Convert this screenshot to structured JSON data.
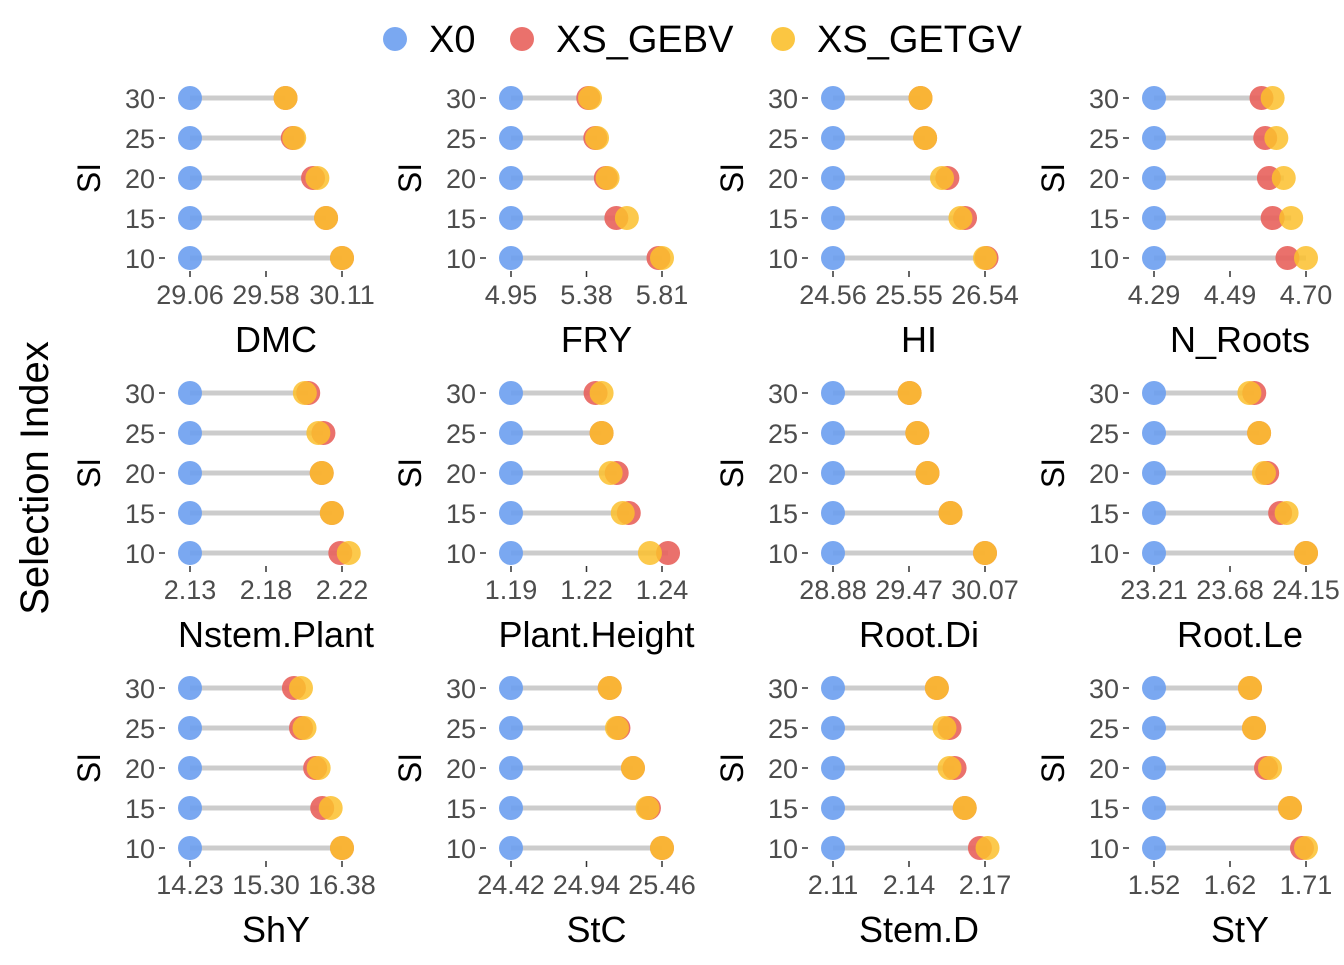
{
  "chart_data": {
    "type": "dumbbell",
    "ylabel_overall": "Selection Index",
    "legend": {
      "position": "top",
      "items": [
        {
          "name": "X0",
          "color": "#6C9EF0"
        },
        {
          "name": "XS_GEBV",
          "color": "#E8625C"
        },
        {
          "name": "XS_GETGV",
          "color": "#FBC02D"
        }
      ]
    },
    "categories": [
      "30",
      "25",
      "20",
      "15",
      "10"
    ],
    "panel_ylabel": "SI",
    "panels": [
      {
        "title": "DMC",
        "xticks": [
          "29.06",
          "29.58",
          "30.11"
        ],
        "xlim": [
          29.06,
          30.11
        ],
        "series": {
          "X0": [
            29.06,
            29.06,
            29.06,
            29.06,
            29.06
          ],
          "XS_GEBV": [
            29.72,
            29.77,
            29.91,
            30.0,
            30.11
          ],
          "XS_GETGV": [
            29.72,
            29.78,
            29.94,
            30.0,
            30.11
          ]
        }
      },
      {
        "title": "FRY",
        "xticks": [
          "4.95",
          "5.38",
          "5.81"
        ],
        "xlim": [
          4.95,
          5.81
        ],
        "series": {
          "X0": [
            4.95,
            4.95,
            4.95,
            4.95,
            4.95
          ],
          "XS_GEBV": [
            5.39,
            5.43,
            5.49,
            5.55,
            5.79
          ],
          "XS_GETGV": [
            5.4,
            5.44,
            5.5,
            5.61,
            5.81
          ]
        }
      },
      {
        "title": "HI",
        "xticks": [
          "24.56",
          "25.55",
          "26.54"
        ],
        "xlim": [
          24.56,
          26.54
        ],
        "series": {
          "X0": [
            24.56,
            24.56,
            24.56,
            24.56,
            24.56
          ],
          "XS_GEBV": [
            25.7,
            25.76,
            26.05,
            26.28,
            26.56
          ],
          "XS_GETGV": [
            25.7,
            25.76,
            25.98,
            26.22,
            26.54
          ]
        }
      },
      {
        "title": "N_Roots",
        "xticks": [
          "4.29",
          "4.49",
          "4.70"
        ],
        "xlim": [
          4.29,
          4.7
        ],
        "series": {
          "X0": [
            4.29,
            4.29,
            4.29,
            4.29,
            4.29
          ],
          "XS_GEBV": [
            4.58,
            4.59,
            4.6,
            4.61,
            4.65
          ],
          "XS_GETGV": [
            4.61,
            4.62,
            4.64,
            4.66,
            4.7
          ]
        }
      },
      {
        "title": "Nstem.Plant",
        "xticks": [
          "2.13",
          "2.18",
          "2.22"
        ],
        "xlim": [
          2.13,
          2.22
        ],
        "series": {
          "X0": [
            2.13,
            2.13,
            2.13,
            2.13,
            2.13
          ],
          "XS_GEBV": [
            2.2,
            2.209,
            2.208,
            2.214,
            2.219
          ],
          "XS_GETGV": [
            2.198,
            2.206,
            2.208,
            2.214,
            2.224
          ]
        }
      },
      {
        "title": "Plant.Height",
        "xticks": [
          "1.19",
          "1.22",
          "1.24"
        ],
        "xlim": [
          1.19,
          1.24
        ],
        "series": {
          "X0": [
            1.19,
            1.19,
            1.19,
            1.19,
            1.19
          ],
          "XS_GEBV": [
            1.218,
            1.22,
            1.225,
            1.229,
            1.242
          ],
          "XS_GETGV": [
            1.22,
            1.22,
            1.223,
            1.227,
            1.236
          ]
        }
      },
      {
        "title": "Root.Di",
        "xticks": [
          "28.88",
          "29.47",
          "30.07"
        ],
        "xlim": [
          28.88,
          30.07
        ],
        "series": {
          "X0": [
            28.88,
            28.88,
            28.88,
            28.88,
            28.88
          ],
          "XS_GEBV": [
            29.48,
            29.54,
            29.62,
            29.8,
            30.07
          ],
          "XS_GETGV": [
            29.48,
            29.54,
            29.62,
            29.8,
            30.07
          ]
        }
      },
      {
        "title": "Root.Le",
        "xticks": [
          "23.21",
          "23.68",
          "24.15"
        ],
        "xlim": [
          23.21,
          24.15
        ],
        "series": {
          "X0": [
            23.21,
            23.21,
            23.21,
            23.21,
            23.21
          ],
          "XS_GEBV": [
            23.83,
            23.86,
            23.91,
            23.99,
            24.15
          ],
          "XS_GETGV": [
            23.8,
            23.86,
            23.89,
            24.03,
            24.15
          ]
        }
      },
      {
        "title": "ShY",
        "xticks": [
          "14.23",
          "15.30",
          "16.38"
        ],
        "xlim": [
          14.23,
          16.38
        ],
        "series": {
          "X0": [
            14.23,
            14.23,
            14.23,
            14.23,
            14.23
          ],
          "XS_GEBV": [
            15.7,
            15.8,
            16.0,
            16.1,
            16.38
          ],
          "XS_GETGV": [
            15.8,
            15.85,
            16.05,
            16.22,
            16.38
          ]
        }
      },
      {
        "title": "StC",
        "xticks": [
          "24.42",
          "24.94",
          "25.46"
        ],
        "xlim": [
          24.42,
          25.46
        ],
        "series": {
          "X0": [
            24.42,
            24.42,
            24.42,
            24.42,
            24.42
          ],
          "XS_GEBV": [
            25.1,
            25.16,
            25.26,
            25.37,
            25.46
          ],
          "XS_GETGV": [
            25.1,
            25.15,
            25.26,
            25.36,
            25.46
          ]
        }
      },
      {
        "title": "Stem.D",
        "xticks": [
          "2.11",
          "2.14",
          "2.17"
        ],
        "xlim": [
          2.11,
          2.17
        ],
        "series": {
          "X0": [
            2.11,
            2.11,
            2.11,
            2.11,
            2.11
          ],
          "XS_GEBV": [
            2.151,
            2.156,
            2.158,
            2.162,
            2.168
          ],
          "XS_GETGV": [
            2.151,
            2.154,
            2.156,
            2.162,
            2.171
          ]
        }
      },
      {
        "title": "StY",
        "xticks": [
          "1.52",
          "1.62",
          "1.71"
        ],
        "xlim": [
          1.52,
          1.71
        ],
        "series": {
          "X0": [
            1.52,
            1.52,
            1.52,
            1.52,
            1.52
          ],
          "XS_GEBV": [
            1.64,
            1.645,
            1.66,
            1.69,
            1.705
          ],
          "XS_GETGV": [
            1.64,
            1.645,
            1.665,
            1.69,
            1.71
          ]
        }
      }
    ]
  }
}
